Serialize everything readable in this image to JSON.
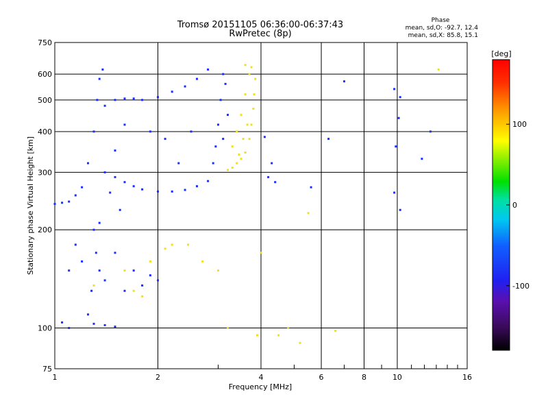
{
  "chart_data": {
    "type": "scatter",
    "title": "Tromsø 20151105 06:36:00-06:37:43",
    "subtitle": "RwPretec (8p)",
    "xlabel": "Frequency [MHz]",
    "ylabel": "Stationary phase Virtual Height [km]",
    "xscale": "log",
    "yscale": "log",
    "xlim": [
      1,
      16
    ],
    "ylim": [
      75,
      750
    ],
    "xticks": [
      1,
      2,
      4,
      6,
      8,
      10,
      16
    ],
    "xticklabels": [
      "1",
      "2",
      "4",
      "6",
      "8",
      "10",
      "16"
    ],
    "yticks": [
      75,
      100,
      200,
      300,
      400,
      500,
      600,
      750
    ],
    "yticklabels": [
      "75",
      "100",
      "200",
      "300",
      "400",
      "500",
      "600",
      "750"
    ],
    "grid": true,
    "stats": {
      "title": "Phase",
      "line_o": "mean, sd,O: -92.7, 12.4",
      "line_x": "mean, sd,X:  85.8, 15.1"
    },
    "colorbar": {
      "label": "[deg]",
      "range": [
        -180,
        180
      ],
      "ticks": [
        100,
        0,
        -100
      ],
      "ticklabels": [
        "100",
        "0",
        "-100"
      ]
    },
    "series": [
      {
        "name": "O",
        "color": "#1a2eff",
        "points": [
          [
            1.0,
            240
          ],
          [
            1.05,
            242
          ],
          [
            1.1,
            244
          ],
          [
            1.15,
            255
          ],
          [
            1.2,
            270
          ],
          [
            1.25,
            320
          ],
          [
            1.3,
            400
          ],
          [
            1.33,
            500
          ],
          [
            1.35,
            580
          ],
          [
            1.38,
            620
          ],
          [
            1.3,
            200
          ],
          [
            1.32,
            170
          ],
          [
            1.35,
            150
          ],
          [
            1.28,
            130
          ],
          [
            1.25,
            110
          ],
          [
            1.3,
            103
          ],
          [
            1.4,
            102
          ],
          [
            1.5,
            101
          ],
          [
            1.1,
            100
          ],
          [
            1.05,
            104
          ],
          [
            1.4,
            300
          ],
          [
            1.5,
            290
          ],
          [
            1.6,
            280
          ],
          [
            1.7,
            272
          ],
          [
            1.8,
            266
          ],
          [
            2.0,
            262
          ],
          [
            2.2,
            262
          ],
          [
            2.4,
            265
          ],
          [
            2.6,
            272
          ],
          [
            2.8,
            282
          ],
          [
            1.4,
            480
          ],
          [
            1.5,
            500
          ],
          [
            1.6,
            505
          ],
          [
            1.7,
            505
          ],
          [
            1.8,
            500
          ],
          [
            2.0,
            510
          ],
          [
            2.2,
            530
          ],
          [
            2.4,
            550
          ],
          [
            2.6,
            580
          ],
          [
            2.8,
            620
          ],
          [
            3.1,
            600
          ],
          [
            3.05,
            500
          ],
          [
            3.0,
            420
          ],
          [
            2.95,
            360
          ],
          [
            2.9,
            320
          ],
          [
            3.15,
            560
          ],
          [
            3.2,
            450
          ],
          [
            3.1,
            380
          ],
          [
            1.2,
            160
          ],
          [
            1.4,
            140
          ],
          [
            1.6,
            130
          ],
          [
            1.8,
            135
          ],
          [
            2.0,
            140
          ],
          [
            1.1,
            150
          ],
          [
            1.15,
            180
          ],
          [
            1.5,
            170
          ],
          [
            1.7,
            150
          ],
          [
            1.9,
            145
          ],
          [
            2.3,
            320
          ],
          [
            2.5,
            400
          ],
          [
            2.1,
            380
          ],
          [
            1.9,
            400
          ],
          [
            1.6,
            420
          ],
          [
            1.5,
            350
          ],
          [
            1.45,
            260
          ],
          [
            1.55,
            230
          ],
          [
            1.35,
            210
          ],
          [
            4.2,
            290
          ],
          [
            4.4,
            280
          ],
          [
            5.6,
            270
          ],
          [
            6.3,
            380
          ],
          [
            7.0,
            570
          ],
          [
            9.8,
            540
          ],
          [
            10.2,
            510
          ],
          [
            10.1,
            440
          ],
          [
            12.5,
            400
          ],
          [
            11.8,
            330
          ],
          [
            9.9,
            360
          ],
          [
            10.2,
            230
          ],
          [
            9.8,
            260
          ],
          [
            4.1,
            385
          ],
          [
            4.3,
            320
          ]
        ]
      },
      {
        "name": "X",
        "color": "#f0e020",
        "points": [
          [
            3.2,
            305
          ],
          [
            3.3,
            310
          ],
          [
            3.4,
            320
          ],
          [
            3.5,
            330
          ],
          [
            3.6,
            345
          ],
          [
            3.7,
            380
          ],
          [
            3.75,
            420
          ],
          [
            3.8,
            470
          ],
          [
            3.82,
            520
          ],
          [
            3.85,
            580
          ],
          [
            3.3,
            360
          ],
          [
            3.4,
            400
          ],
          [
            3.5,
            450
          ],
          [
            3.6,
            520
          ],
          [
            3.7,
            600
          ],
          [
            3.6,
            640
          ],
          [
            3.75,
            630
          ],
          [
            3.45,
            340
          ],
          [
            3.55,
            380
          ],
          [
            3.65,
            420
          ],
          [
            2.1,
            175
          ],
          [
            2.2,
            180
          ],
          [
            2.45,
            180
          ],
          [
            2.7,
            160
          ],
          [
            1.7,
            130
          ],
          [
            1.8,
            125
          ],
          [
            1.6,
            150
          ],
          [
            1.9,
            160
          ],
          [
            1.3,
            135
          ],
          [
            3.2,
            100
          ],
          [
            3.9,
            95
          ],
          [
            4.5,
            95
          ],
          [
            5.2,
            90
          ],
          [
            5.5,
            225
          ],
          [
            6.6,
            98
          ],
          [
            13.2,
            620
          ],
          [
            4.0,
            170
          ],
          [
            3.0,
            150
          ],
          [
            4.8,
            100
          ]
        ]
      }
    ]
  }
}
